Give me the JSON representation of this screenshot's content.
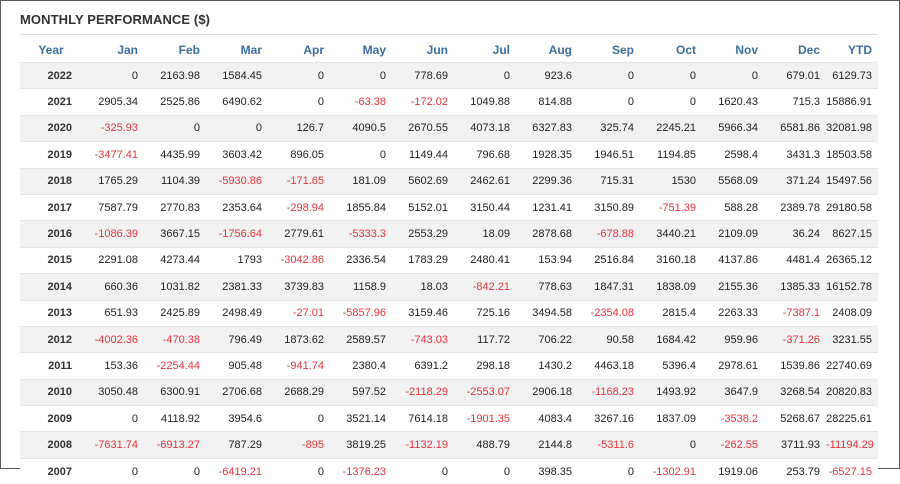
{
  "title": "MONTHLY PERFORMANCE ($)",
  "colors": {
    "header_text": "#3d6fa5",
    "negative": "#e8333a",
    "stripe": "#f2f2f2"
  },
  "columns": [
    "Year",
    "Jan",
    "Feb",
    "Mar",
    "Apr",
    "May",
    "Jun",
    "Jul",
    "Aug",
    "Sep",
    "Oct",
    "Nov",
    "Dec",
    "YTD"
  ],
  "rows": [
    {
      "year": "2022",
      "values": [
        "0",
        "2163.98",
        "1584.45",
        "0",
        "0",
        "778.69",
        "0",
        "923.6",
        "0",
        "0",
        "0",
        "679.01",
        "6129.73"
      ]
    },
    {
      "year": "2021",
      "values": [
        "2905.34",
        "2525.86",
        "6490.62",
        "0",
        "-63.38",
        "-172.02",
        "1049.88",
        "814.88",
        "0",
        "0",
        "1620.43",
        "715.3",
        "15886.91"
      ]
    },
    {
      "year": "2020",
      "values": [
        "-325.93",
        "0",
        "0",
        "126.7",
        "4090.5",
        "2670.55",
        "4073.18",
        "6327.83",
        "325.74",
        "2245.21",
        "5966.34",
        "6581.86",
        "32081.98"
      ]
    },
    {
      "year": "2019",
      "values": [
        "-3477.41",
        "4435.99",
        "3603.42",
        "896.05",
        "0",
        "1149.44",
        "796.68",
        "1928.35",
        "1946.51",
        "1194.85",
        "2598.4",
        "3431.3",
        "18503.58"
      ]
    },
    {
      "year": "2018",
      "values": [
        "1765.29",
        "1104.39",
        "-5930.86",
        "-171.65",
        "181.09",
        "5602.69",
        "2462.61",
        "2299.36",
        "715.31",
        "1530",
        "5568.09",
        "371.24",
        "15497.56"
      ]
    },
    {
      "year": "2017",
      "values": [
        "7587.79",
        "2770.83",
        "2353.64",
        "-298.94",
        "1855.84",
        "5152.01",
        "3150.44",
        "1231.41",
        "3150.89",
        "-751.39",
        "588.28",
        "2389.78",
        "29180.58"
      ]
    },
    {
      "year": "2016",
      "values": [
        "-1086.39",
        "3667.15",
        "-1756.64",
        "2779.61",
        "-5333.3",
        "2553.29",
        "18.09",
        "2878.68",
        "-678.88",
        "3440.21",
        "2109.09",
        "36.24",
        "8627.15"
      ]
    },
    {
      "year": "2015",
      "values": [
        "2291.08",
        "4273.44",
        "1793",
        "-3042.86",
        "2336.54",
        "1783.29",
        "2480.41",
        "153.94",
        "2516.84",
        "3160.18",
        "4137.86",
        "4481.4",
        "26365.12"
      ]
    },
    {
      "year": "2014",
      "values": [
        "660.36",
        "1031.82",
        "2381.33",
        "3739.83",
        "1158.9",
        "18.03",
        "-842.21",
        "778.63",
        "1847.31",
        "1838.09",
        "2155.36",
        "1385.33",
        "16152.78"
      ]
    },
    {
      "year": "2013",
      "values": [
        "651.93",
        "2425.89",
        "2498.49",
        "-27.01",
        "-5857.96",
        "3159.46",
        "725.16",
        "3494.58",
        "-2354.08",
        "2815.4",
        "2263.33",
        "-7387.1",
        "2408.09"
      ]
    },
    {
      "year": "2012",
      "values": [
        "-4002.36",
        "-470.38",
        "796.49",
        "1873.62",
        "2589.57",
        "-743.03",
        "117.72",
        "706.22",
        "90.58",
        "1684.42",
        "959.96",
        "-371.26",
        "3231.55"
      ]
    },
    {
      "year": "2011",
      "values": [
        "153.36",
        "-2254.44",
        "905.48",
        "-941.74",
        "2380.4",
        "6391.2",
        "298.18",
        "1430.2",
        "4463.18",
        "5396.4",
        "2978.61",
        "1539.86",
        "22740.69"
      ]
    },
    {
      "year": "2010",
      "values": [
        "3050.48",
        "6300.91",
        "2706.68",
        "2688.29",
        "597.52",
        "-2118.29",
        "-2553.07",
        "2906.18",
        "-1168.23",
        "1493.92",
        "3647.9",
        "3268.54",
        "20820.83"
      ]
    },
    {
      "year": "2009",
      "values": [
        "0",
        "4118.92",
        "3954.6",
        "0",
        "3521.14",
        "7614.18",
        "-1901.35",
        "4083.4",
        "3267.16",
        "1837.09",
        "-3538.2",
        "5268.67",
        "28225.61"
      ]
    },
    {
      "year": "2008",
      "values": [
        "-7631.74",
        "-6913.27",
        "787.29",
        "-895",
        "3819.25",
        "-1132.19",
        "488.79",
        "2144.8",
        "-5311.6",
        "0",
        "-262.55",
        "3711.93",
        "-11194.29"
      ]
    },
    {
      "year": "2007",
      "values": [
        "0",
        "0",
        "-6419.21",
        "0",
        "-1376.23",
        "0",
        "0",
        "398.35",
        "0",
        "-1302.91",
        "1919.06",
        "253.79",
        "-6527.15"
      ]
    }
  ]
}
